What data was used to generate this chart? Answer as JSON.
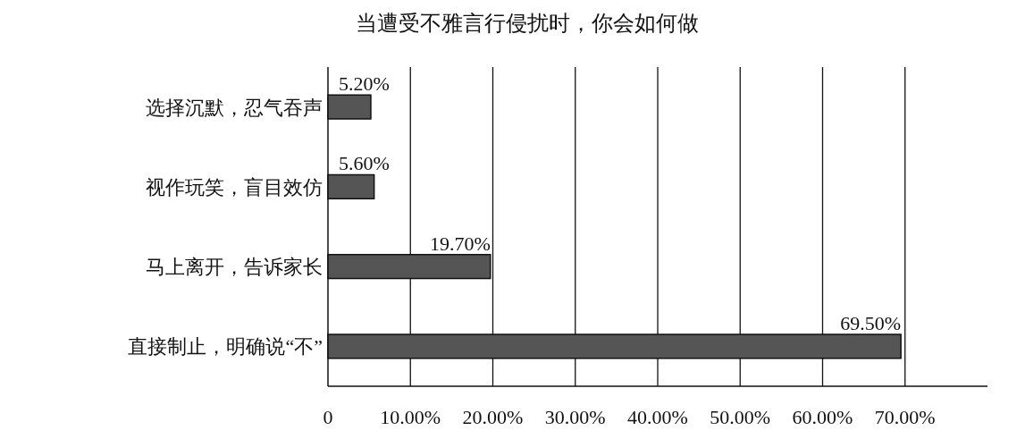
{
  "chart_data": {
    "type": "bar",
    "orientation": "horizontal",
    "title": "当遭受不雅言行侵扰时，你会如何做",
    "categories": [
      "选择沉默，忍气吞声",
      "视作玩笑，盲目效仿",
      "马上离开，告诉家长",
      "直接制止，明确说“不”"
    ],
    "values": [
      5.2,
      5.6,
      19.7,
      69.5
    ],
    "value_labels": [
      "5.20%",
      "5.60%",
      "19.70%",
      "69.50%"
    ],
    "color": "#555555",
    "xlim": [
      0,
      80
    ],
    "xticks": [
      0,
      {
        "value": 10,
        "label": "10.00%"
      },
      {
        "value": 20,
        "label": "20.00%"
      },
      {
        "value": 30,
        "label": "30.00%"
      },
      {
        "value": 40,
        "label": "40.00%"
      },
      {
        "value": 50,
        "label": "50.00%"
      },
      {
        "value": 60,
        "label": "60.00%"
      },
      {
        "value": 70,
        "label": "70.00%"
      }
    ],
    "grid": "x"
  }
}
